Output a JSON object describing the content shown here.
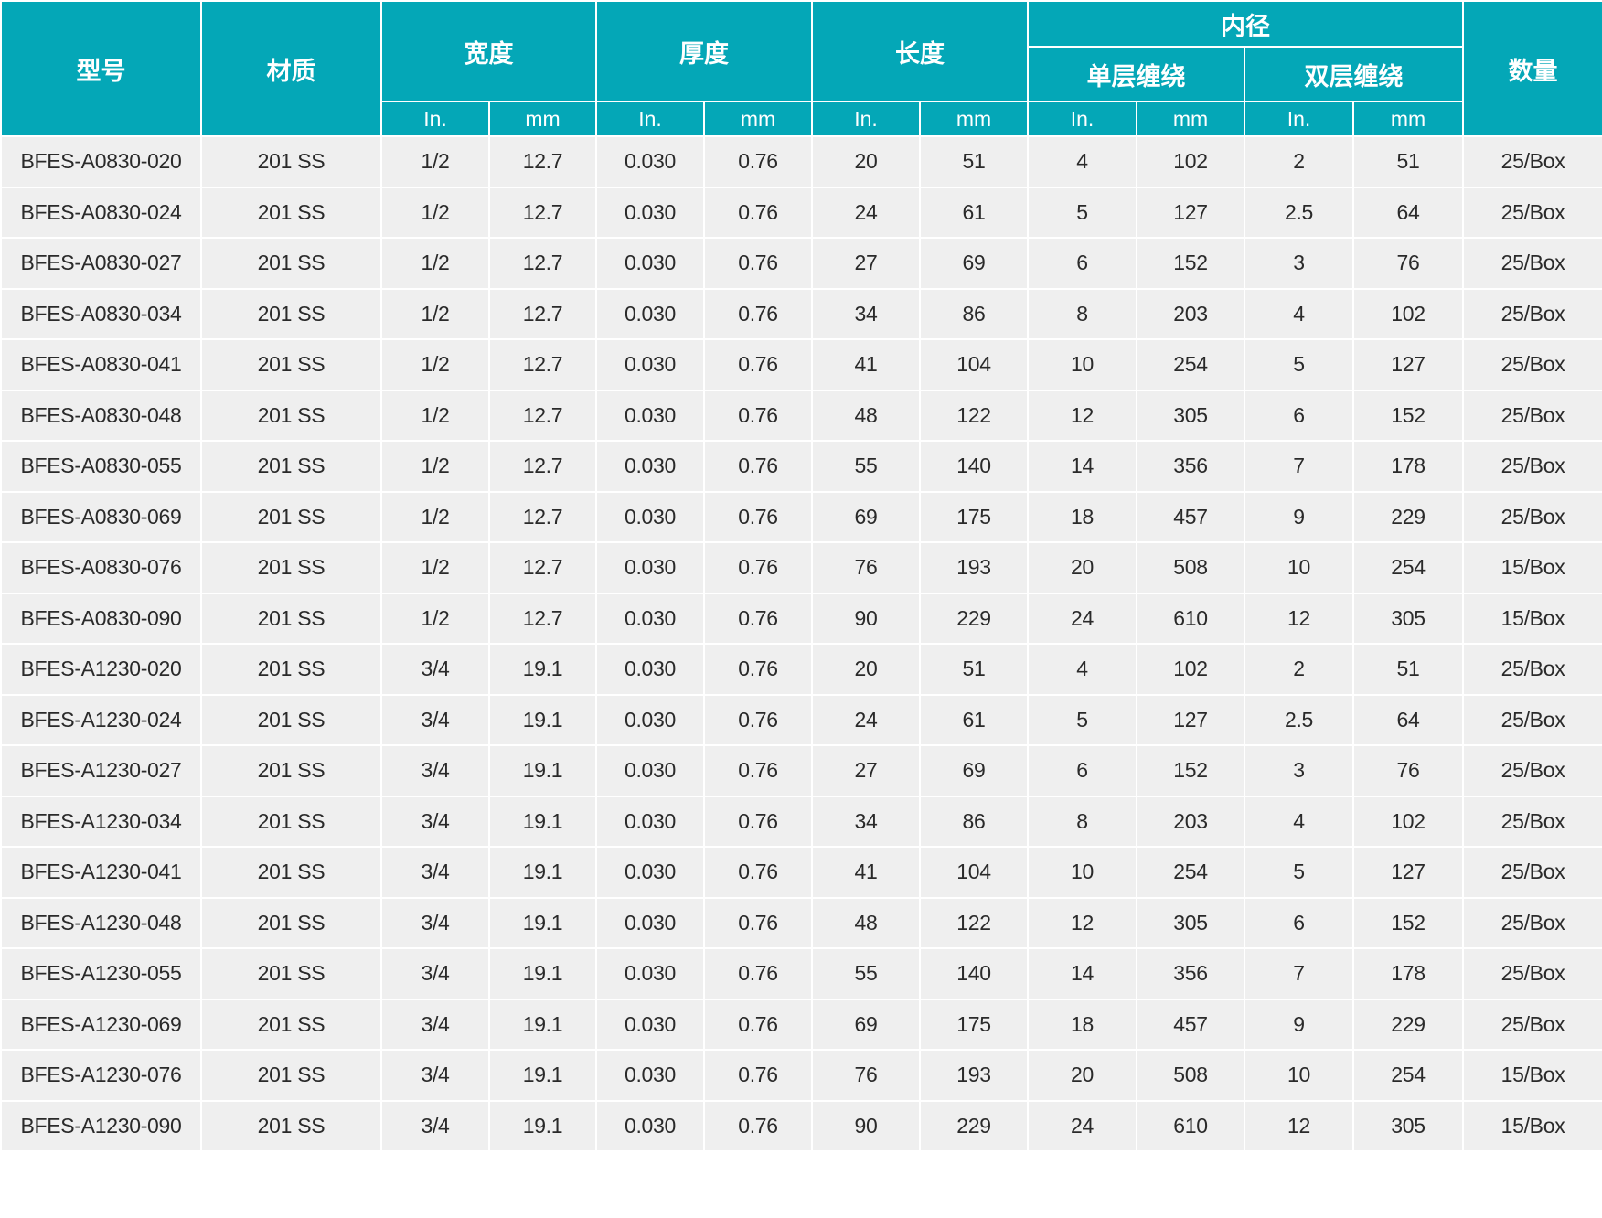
{
  "table": {
    "headers": {
      "model": "型号",
      "material": "材质",
      "width": "宽度",
      "thickness": "厚度",
      "length": "长度",
      "inner_diameter": "内径",
      "single_wrap": "单层缠绕",
      "double_wrap": "双层缠绕",
      "quantity": "数量",
      "unit_in": "In.",
      "unit_mm": "mm"
    },
    "column_keys": [
      "model",
      "material",
      "width-in",
      "width-mm",
      "thickness-in",
      "thickness-mm",
      "length-in",
      "length-mm",
      "single-wrap-in",
      "single-wrap-mm",
      "double-wrap-in",
      "double-wrap-mm",
      "quantity"
    ],
    "rows": [
      [
        "BFES-A0830-020",
        "201 SS",
        "1/2",
        "12.7",
        "0.030",
        "0.76",
        "20",
        "51",
        "4",
        "102",
        "2",
        "51",
        "25/Box"
      ],
      [
        "BFES-A0830-024",
        "201 SS",
        "1/2",
        "12.7",
        "0.030",
        "0.76",
        "24",
        "61",
        "5",
        "127",
        "2.5",
        "64",
        "25/Box"
      ],
      [
        "BFES-A0830-027",
        "201 SS",
        "1/2",
        "12.7",
        "0.030",
        "0.76",
        "27",
        "69",
        "6",
        "152",
        "3",
        "76",
        "25/Box"
      ],
      [
        "BFES-A0830-034",
        "201 SS",
        "1/2",
        "12.7",
        "0.030",
        "0.76",
        "34",
        "86",
        "8",
        "203",
        "4",
        "102",
        "25/Box"
      ],
      [
        "BFES-A0830-041",
        "201 SS",
        "1/2",
        "12.7",
        "0.030",
        "0.76",
        "41",
        "104",
        "10",
        "254",
        "5",
        "127",
        "25/Box"
      ],
      [
        "BFES-A0830-048",
        "201 SS",
        "1/2",
        "12.7",
        "0.030",
        "0.76",
        "48",
        "122",
        "12",
        "305",
        "6",
        "152",
        "25/Box"
      ],
      [
        "BFES-A0830-055",
        "201 SS",
        "1/2",
        "12.7",
        "0.030",
        "0.76",
        "55",
        "140",
        "14",
        "356",
        "7",
        "178",
        "25/Box"
      ],
      [
        "BFES-A0830-069",
        "201 SS",
        "1/2",
        "12.7",
        "0.030",
        "0.76",
        "69",
        "175",
        "18",
        "457",
        "9",
        "229",
        "25/Box"
      ],
      [
        "BFES-A0830-076",
        "201 SS",
        "1/2",
        "12.7",
        "0.030",
        "0.76",
        "76",
        "193",
        "20",
        "508",
        "10",
        "254",
        "15/Box"
      ],
      [
        "BFES-A0830-090",
        "201 SS",
        "1/2",
        "12.7",
        "0.030",
        "0.76",
        "90",
        "229",
        "24",
        "610",
        "12",
        "305",
        "15/Box"
      ],
      [
        "BFES-A1230-020",
        "201 SS",
        "3/4",
        "19.1",
        "0.030",
        "0.76",
        "20",
        "51",
        "4",
        "102",
        "2",
        "51",
        "25/Box"
      ],
      [
        "BFES-A1230-024",
        "201 SS",
        "3/4",
        "19.1",
        "0.030",
        "0.76",
        "24",
        "61",
        "5",
        "127",
        "2.5",
        "64",
        "25/Box"
      ],
      [
        "BFES-A1230-027",
        "201 SS",
        "3/4",
        "19.1",
        "0.030",
        "0.76",
        "27",
        "69",
        "6",
        "152",
        "3",
        "76",
        "25/Box"
      ],
      [
        "BFES-A1230-034",
        "201 SS",
        "3/4",
        "19.1",
        "0.030",
        "0.76",
        "34",
        "86",
        "8",
        "203",
        "4",
        "102",
        "25/Box"
      ],
      [
        "BFES-A1230-041",
        "201 SS",
        "3/4",
        "19.1",
        "0.030",
        "0.76",
        "41",
        "104",
        "10",
        "254",
        "5",
        "127",
        "25/Box"
      ],
      [
        "BFES-A1230-048",
        "201 SS",
        "3/4",
        "19.1",
        "0.030",
        "0.76",
        "48",
        "122",
        "12",
        "305",
        "6",
        "152",
        "25/Box"
      ],
      [
        "BFES-A1230-055",
        "201 SS",
        "3/4",
        "19.1",
        "0.030",
        "0.76",
        "55",
        "140",
        "14",
        "356",
        "7",
        "178",
        "25/Box"
      ],
      [
        "BFES-A1230-069",
        "201 SS",
        "3/4",
        "19.1",
        "0.030",
        "0.76",
        "69",
        "175",
        "18",
        "457",
        "9",
        "229",
        "25/Box"
      ],
      [
        "BFES-A1230-076",
        "201 SS",
        "3/4",
        "19.1",
        "0.030",
        "0.76",
        "76",
        "193",
        "20",
        "508",
        "10",
        "254",
        "15/Box"
      ],
      [
        "BFES-A1230-090",
        "201 SS",
        "3/4",
        "19.1",
        "0.030",
        "0.76",
        "90",
        "229",
        "24",
        "610",
        "12",
        "305",
        "15/Box"
      ]
    ]
  },
  "colors": {
    "header_bg": "#04a7b7",
    "row_bg": "#efefef",
    "header_text": "#ffffff",
    "body_text": "#2a2a2a"
  }
}
